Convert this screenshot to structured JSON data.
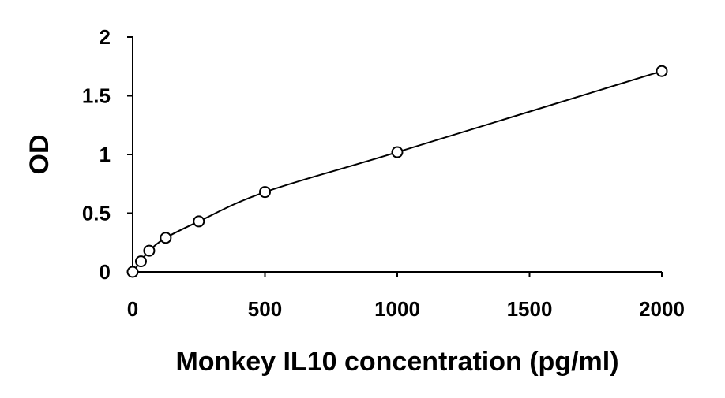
{
  "chart_data": {
    "type": "scatter",
    "title": "",
    "xlabel": "Monkey IL10 concentration (pg/ml)",
    "ylabel": "OD",
    "xlim": [
      0,
      2000
    ],
    "ylim": [
      0,
      2
    ],
    "x_ticks": [
      0,
      500,
      1000,
      1500,
      2000
    ],
    "y_ticks": [
      0,
      0.5,
      1,
      1.5,
      2
    ],
    "x_tick_labels": [
      "0",
      "500",
      "1000",
      "1500",
      "2000"
    ],
    "y_tick_labels": [
      "0",
      "0.5",
      "1",
      "1.5",
      "2"
    ],
    "grid": false,
    "legend": "none",
    "marker": "open-circle",
    "trendline": "smooth fitted curve through points",
    "series": [
      {
        "x": [
          0,
          31.25,
          62.5,
          125,
          250,
          500,
          1000,
          2000
        ],
        "y": [
          0.0,
          0.09,
          0.18,
          0.29,
          0.43,
          0.68,
          1.02,
          1.71
        ]
      }
    ],
    "colors": {
      "line": "#000000",
      "marker_stroke": "#000000",
      "marker_fill": "#ffffff"
    }
  }
}
